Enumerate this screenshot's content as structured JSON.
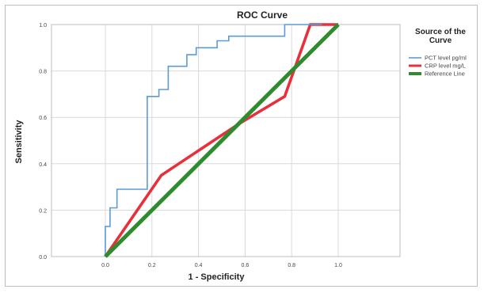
{
  "chart_data": {
    "type": "line",
    "title": "ROC Curve",
    "xlabel": "1 - Specificity",
    "ylabel": "Sensitivity",
    "xlim": [
      0,
      1
    ],
    "ylim": [
      0,
      1
    ],
    "x_ticks": [
      "0.0",
      "0.2",
      "0.4",
      "0.6",
      "0.8",
      "1.0"
    ],
    "y_ticks": [
      "0.0",
      "0.2",
      "0.4",
      "0.6",
      "0.8",
      "1.0"
    ],
    "grid": true,
    "legend": {
      "title_line1": "Source of the",
      "title_line2": "Curve",
      "placement": "right"
    },
    "series": [
      {
        "name": "PCT level pg/ml",
        "color": "#5b9bd5",
        "x": [
          0,
          0,
          0.02,
          0.02,
          0.05,
          0.05,
          0.09,
          0.09,
          0.18,
          0.18,
          0.23,
          0.23,
          0.27,
          0.27,
          0.35,
          0.35,
          0.39,
          0.39,
          0.48,
          0.48,
          0.53,
          0.53,
          0.77,
          0.77,
          0.93
        ],
        "y": [
          0,
          0.13,
          0.13,
          0.21,
          0.21,
          0.29,
          0.29,
          0.29,
          0.29,
          0.69,
          0.69,
          0.72,
          0.72,
          0.82,
          0.82,
          0.87,
          0.87,
          0.9,
          0.9,
          0.93,
          0.93,
          0.95,
          0.95,
          1.0,
          1.0
        ]
      },
      {
        "name": "CRP level mg/L",
        "color": "#e8303c",
        "x": [
          0,
          0.24,
          0.57,
          0.77,
          0.88,
          1.0
        ],
        "y": [
          0,
          0.35,
          0.57,
          0.69,
          1.0,
          1.0
        ]
      },
      {
        "name": "Reference Line",
        "color": "#2e8b2e",
        "x": [
          0,
          1
        ],
        "y": [
          0,
          1
        ]
      }
    ]
  }
}
